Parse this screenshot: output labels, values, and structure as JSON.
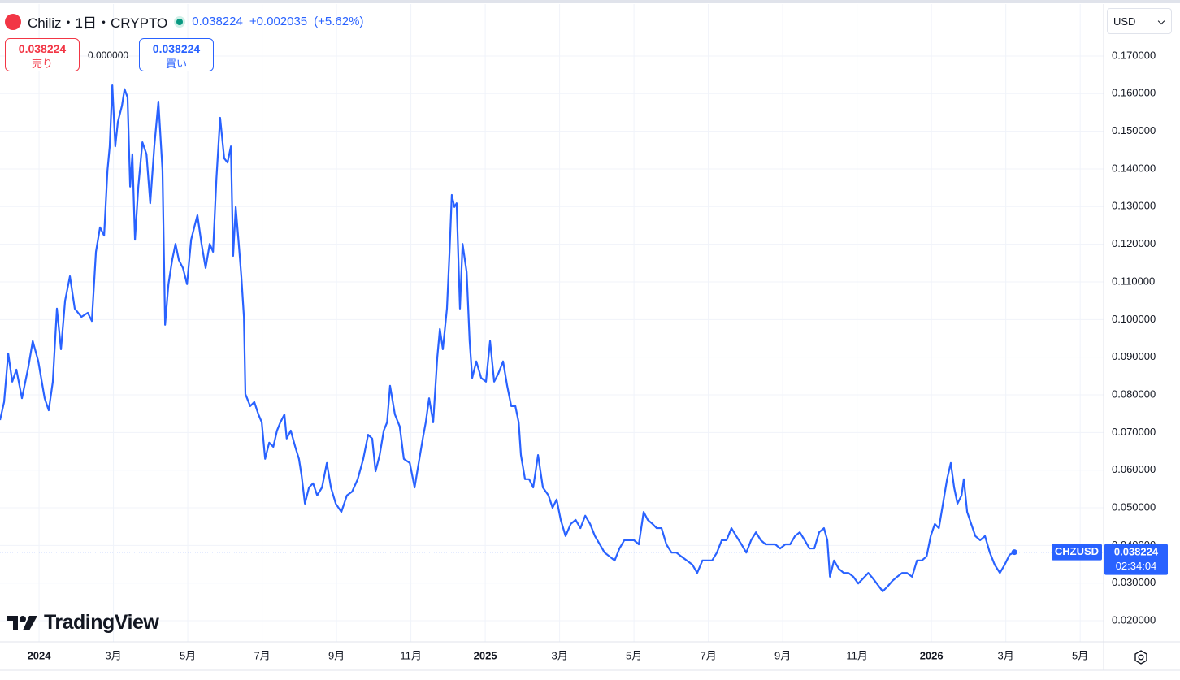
{
  "header": {
    "symbol": "Chiliz・1日・CRYPTO",
    "price": "0.038224",
    "change": "+0.002035",
    "change_pct": "(+5.62%)",
    "currency": "USD"
  },
  "trade": {
    "sell_price": "0.038224",
    "sell_label": "売り",
    "spread": "0.000000",
    "buy_price": "0.038224",
    "buy_label": "買い"
  },
  "brand": "TradingView",
  "chart_data": {
    "type": "line",
    "x": [
      -1.05,
      -0.94,
      -0.83,
      -0.72,
      -0.61,
      -0.46,
      -0.28,
      -0.17,
      -0.02,
      0.15,
      0.26,
      0.37,
      0.48,
      0.59,
      0.7,
      0.83,
      0.96,
      1.14,
      1.31,
      1.42,
      1.53,
      1.64,
      1.75,
      1.84,
      1.9,
      1.97,
      2.05,
      2.12,
      2.23,
      2.3,
      2.38,
      2.45,
      2.51,
      2.58,
      2.67,
      2.78,
      2.89,
      2.99,
      3.1,
      3.21,
      3.32,
      3.39,
      3.48,
      3.58,
      3.67,
      3.76,
      3.87,
      3.98,
      4.09,
      4.2,
      4.26,
      4.37,
      4.48,
      4.59,
      4.68,
      4.77,
      4.87,
      4.98,
      5.07,
      5.16,
      5.22,
      5.29,
      5.38,
      5.44,
      5.51,
      5.55,
      5.68,
      5.79,
      5.9,
      5.99,
      6.08,
      6.19,
      6.3,
      6.4,
      6.49,
      6.6,
      6.66,
      6.77,
      6.89,
      6.99,
      7.06,
      7.15,
      7.26,
      7.37,
      7.48,
      7.61,
      7.74,
      7.85,
      7.98,
      8.13,
      8.28,
      8.42,
      8.57,
      8.72,
      8.85,
      8.96,
      9.05,
      9.16,
      9.27,
      9.36,
      9.44,
      9.57,
      9.7,
      9.81,
      9.97,
      10.1,
      10.21,
      10.32,
      10.4,
      10.49,
      10.6,
      10.71,
      10.78,
      10.86,
      10.97,
      11.04,
      11.1,
      11.17,
      11.23,
      11.32,
      11.39,
      11.5,
      11.58,
      11.65,
      11.76,
      11.89,
      12.02,
      12.13,
      12.24,
      12.35,
      12.48,
      12.59,
      12.7,
      12.81,
      12.9,
      12.96,
      13.07,
      13.18,
      13.29,
      13.42,
      13.55,
      13.7,
      13.81,
      13.92,
      14.03,
      14.16,
      14.3,
      14.43,
      14.56,
      14.69,
      14.82,
      14.95,
      15.08,
      15.21,
      15.34,
      15.48,
      15.61,
      15.74,
      15.87,
      16.0,
      16.13,
      16.26,
      16.37,
      16.5,
      16.61,
      16.74,
      16.87,
      17.01,
      17.14,
      17.27,
      17.42,
      17.57,
      17.7,
      17.84,
      17.97,
      18.1,
      18.23,
      18.36,
      18.49,
      18.62,
      18.75,
      18.89,
      19.02,
      19.15,
      19.28,
      19.41,
      19.54,
      19.67,
      19.8,
      19.93,
      20.07,
      20.2,
      20.33,
      20.46,
      20.59,
      20.72,
      20.85,
      20.98,
      21.11,
      21.2,
      21.27,
      21.38,
      21.51,
      21.64,
      21.77,
      21.9,
      22.03,
      22.16,
      22.3,
      22.43,
      22.56,
      22.69,
      22.82,
      22.95,
      23.08,
      23.21,
      23.34,
      23.48,
      23.61,
      23.74,
      23.87,
      23.98,
      24.09,
      24.2,
      24.31,
      24.42,
      24.52,
      24.61,
      24.7,
      24.81,
      24.87,
      24.96,
      25.07,
      25.18,
      25.31,
      25.44,
      25.57,
      25.7,
      25.84,
      25.97,
      26.1,
      26.23
    ],
    "series": [
      {
        "name": "CHZUSD",
        "color": "#2962ff",
        "values": [
          0.0733,
          0.0781,
          0.091,
          0.0835,
          0.0867,
          0.0791,
          0.0878,
          0.0943,
          0.0889,
          0.0791,
          0.0759,
          0.0835,
          0.1029,
          0.0921,
          0.105,
          0.1115,
          0.1029,
          0.1007,
          0.1018,
          0.0996,
          0.118,
          0.1245,
          0.1223,
          0.1396,
          0.146,
          0.1622,
          0.146,
          0.1525,
          0.1568,
          0.1612,
          0.159,
          0.1353,
          0.1439,
          0.1212,
          0.1353,
          0.1471,
          0.1439,
          0.1309,
          0.146,
          0.1579,
          0.1396,
          0.0986,
          0.1094,
          0.1158,
          0.1201,
          0.1158,
          0.1137,
          0.1094,
          0.1212,
          0.1255,
          0.1277,
          0.1201,
          0.1137,
          0.1201,
          0.118,
          0.1374,
          0.1536,
          0.1428,
          0.1417,
          0.146,
          0.1169,
          0.1299,
          0.1191,
          0.1115,
          0.1007,
          0.0802,
          0.077,
          0.0781,
          0.0748,
          0.0727,
          0.063,
          0.0673,
          0.0662,
          0.0705,
          0.0727,
          0.0748,
          0.0684,
          0.0705,
          0.0662,
          0.063,
          0.0586,
          0.0511,
          0.0554,
          0.0565,
          0.0533,
          0.0554,
          0.0619,
          0.0554,
          0.0511,
          0.0489,
          0.0533,
          0.0543,
          0.0576,
          0.063,
          0.0694,
          0.0684,
          0.0597,
          0.064,
          0.0705,
          0.0727,
          0.0824,
          0.0748,
          0.0716,
          0.063,
          0.0619,
          0.0554,
          0.0619,
          0.0684,
          0.0727,
          0.0791,
          0.0727,
          0.0899,
          0.0975,
          0.0921,
          0.1029,
          0.118,
          0.1331,
          0.1299,
          0.1309,
          0.1029,
          0.1201,
          0.1126,
          0.0943,
          0.0845,
          0.0889,
          0.0845,
          0.0835,
          0.0943,
          0.0835,
          0.0856,
          0.0889,
          0.0824,
          0.077,
          0.077,
          0.0727,
          0.064,
          0.0576,
          0.0576,
          0.0554,
          0.064,
          0.0554,
          0.0533,
          0.05,
          0.0522,
          0.0468,
          0.0425,
          0.0457,
          0.0468,
          0.0446,
          0.0479,
          0.0457,
          0.0425,
          0.0403,
          0.0381,
          0.0371,
          0.036,
          0.0392,
          0.0414,
          0.0414,
          0.0414,
          0.0403,
          0.0489,
          0.0468,
          0.0457,
          0.0446,
          0.0446,
          0.0403,
          0.0381,
          0.0381,
          0.0371,
          0.036,
          0.0349,
          0.0327,
          0.036,
          0.036,
          0.036,
          0.0381,
          0.0414,
          0.0414,
          0.0446,
          0.0425,
          0.0403,
          0.0381,
          0.0414,
          0.0435,
          0.0414,
          0.0403,
          0.0403,
          0.0403,
          0.0392,
          0.0403,
          0.0403,
          0.0425,
          0.0435,
          0.0414,
          0.0392,
          0.0392,
          0.0435,
          0.0446,
          0.0414,
          0.0317,
          0.036,
          0.0338,
          0.0327,
          0.0327,
          0.0317,
          0.0299,
          0.0312,
          0.0327,
          0.0312,
          0.0295,
          0.0278,
          0.0291,
          0.0306,
          0.0317,
          0.0327,
          0.0327,
          0.0317,
          0.036,
          0.036,
          0.0371,
          0.0425,
          0.0457,
          0.0446,
          0.0511,
          0.0576,
          0.0619,
          0.0554,
          0.0511,
          0.0533,
          0.0576,
          0.0489,
          0.0457,
          0.0425,
          0.0414,
          0.0425,
          0.0381,
          0.0349,
          0.0327,
          0.0349,
          0.0375,
          0.038224
        ]
      }
    ],
    "countdown": "02:34:04",
    "xlim": [
      -1.05,
      28.63
    ],
    "ylim": [
      0.0144,
      0.1838
    ],
    "xticks": [
      {
        "value": 0,
        "label": "2024"
      },
      {
        "value": 2,
        "label": "3月"
      },
      {
        "value": 4,
        "label": "5月"
      },
      {
        "value": 6,
        "label": "7月"
      },
      {
        "value": 8,
        "label": "9月"
      },
      {
        "value": 10,
        "label": "11月"
      },
      {
        "value": 12,
        "label": "2025"
      },
      {
        "value": 14,
        "label": "3月"
      },
      {
        "value": 16,
        "label": "5月"
      },
      {
        "value": 18,
        "label": "7月"
      },
      {
        "value": 20,
        "label": "9月"
      },
      {
        "value": 22,
        "label": "11月"
      },
      {
        "value": 24,
        "label": "2026"
      },
      {
        "value": 26,
        "label": "3月"
      },
      {
        "value": 28,
        "label": "5月"
      }
    ],
    "yticks": [
      {
        "value": 0.02,
        "label": "0.020000"
      },
      {
        "value": 0.03,
        "label": "0.030000"
      },
      {
        "value": 0.04,
        "label": "0.040000"
      },
      {
        "value": 0.05,
        "label": "0.050000"
      },
      {
        "value": 0.06,
        "label": "0.060000"
      },
      {
        "value": 0.07,
        "label": "0.070000"
      },
      {
        "value": 0.08,
        "label": "0.080000"
      },
      {
        "value": 0.09,
        "label": "0.090000"
      },
      {
        "value": 0.1,
        "label": "0.100000"
      },
      {
        "value": 0.11,
        "label": "0.110000"
      },
      {
        "value": 0.12,
        "label": "0.120000"
      },
      {
        "value": 0.13,
        "label": "0.130000"
      },
      {
        "value": 0.14,
        "label": "0.140000"
      },
      {
        "value": 0.15,
        "label": "0.150000"
      },
      {
        "value": 0.16,
        "label": "0.160000"
      },
      {
        "value": 0.17,
        "label": "0.170000"
      }
    ],
    "grid": true
  }
}
